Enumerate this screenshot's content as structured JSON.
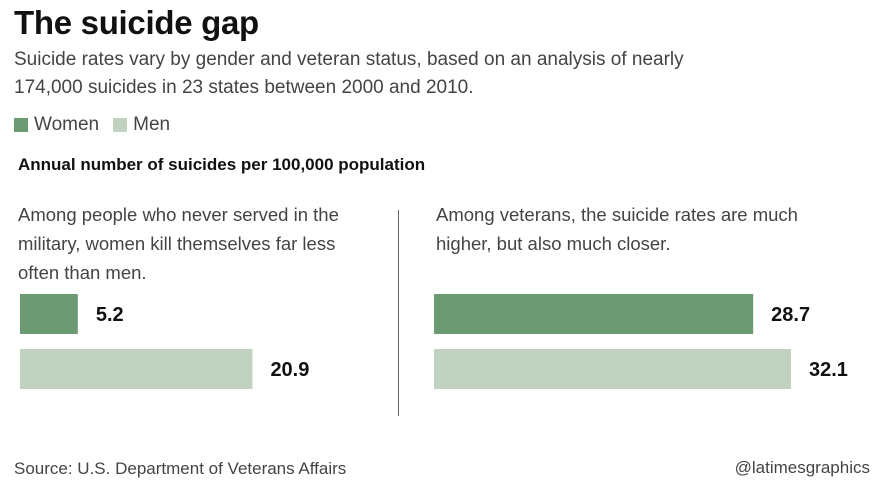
{
  "title": "The suicide gap",
  "subtitle": "Suicide rates vary by gender and veteran status, based on an analysis of nearly 174,000 suicides in 23 states between 2000 and 2010.",
  "legend": [
    {
      "label": "Women",
      "color": "#6b9a73"
    },
    {
      "label": "Men",
      "color": "#c1d3c0"
    }
  ],
  "heading": "Annual number of suicides per 100,000 population",
  "source": "Source: U.S. Department of Veterans Affairs",
  "credit": "@latimesgraphics",
  "chart_data": {
    "type": "bar",
    "orientation": "horizontal",
    "xlim": [
      0,
      32.1
    ],
    "panels": [
      {
        "description": "Among people who never served in the military, women kill themselves far less often than men.",
        "bars": [
          {
            "series": "Women",
            "value": 5.2,
            "label": "5.2"
          },
          {
            "series": "Men",
            "value": 20.9,
            "label": "20.9"
          }
        ]
      },
      {
        "description": "Among veterans, the suicide rates are much higher, but also much closer.",
        "bars": [
          {
            "series": "Women",
            "value": 28.7,
            "label": "28.7"
          },
          {
            "series": "Men",
            "value": 32.1,
            "label": "32.1"
          }
        ]
      }
    ]
  }
}
